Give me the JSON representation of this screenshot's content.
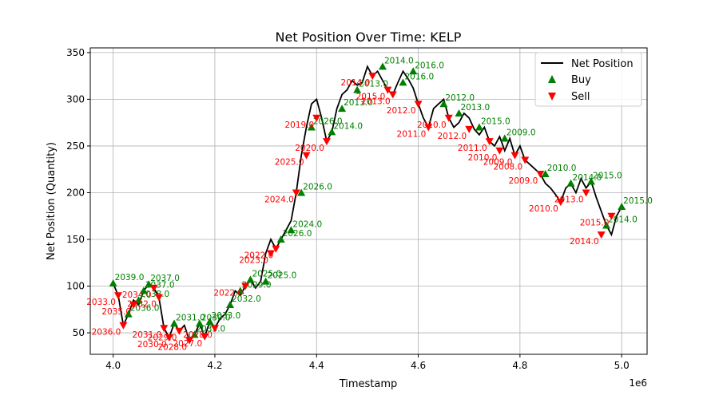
{
  "chart_data": {
    "type": "scatter",
    "title": "Net Position Over Time: KELP",
    "xlabel": "Timestamp",
    "ylabel": "Net Position (Quantity)",
    "x_offset_label": "1e6",
    "xlim": [
      3.955,
      5.05
    ],
    "ylim": [
      27,
      355
    ],
    "x_ticks": [
      4.0,
      4.2,
      4.4,
      4.6,
      4.8,
      5.0
    ],
    "x_tick_labels": [
      "4.0",
      "4.2",
      "4.4",
      "4.6",
      "4.8",
      "5.0"
    ],
    "y_ticks": [
      50,
      100,
      150,
      200,
      250,
      300,
      350
    ],
    "y_tick_labels": [
      "50",
      "100",
      "150",
      "200",
      "250",
      "300",
      "350"
    ],
    "grid": true,
    "legend_position": "top-right",
    "legend": [
      {
        "label": "Net Position",
        "kind": "line",
        "color": "#000000"
      },
      {
        "label": "Buy",
        "kind": "triangle-up",
        "color": "#008000"
      },
      {
        "label": "Sell",
        "kind": "triangle-down",
        "color": "#ff0000"
      }
    ],
    "series": [
      {
        "name": "Net Position",
        "color": "#000000",
        "x": [
          4.0,
          4.01,
          4.02,
          4.03,
          4.04,
          4.05,
          4.06,
          4.07,
          4.08,
          4.09,
          4.1,
          4.11,
          4.12,
          4.13,
          4.14,
          4.15,
          4.16,
          4.17,
          4.18,
          4.19,
          4.2,
          4.21,
          4.22,
          4.23,
          4.24,
          4.25,
          4.26,
          4.27,
          4.28,
          4.29,
          4.3,
          4.31,
          4.32,
          4.33,
          4.34,
          4.35,
          4.36,
          4.37,
          4.38,
          4.39,
          4.4,
          4.41,
          4.42,
          4.43,
          4.44,
          4.45,
          4.46,
          4.47,
          4.48,
          4.49,
          4.5,
          4.51,
          4.52,
          4.53,
          4.54,
          4.55,
          4.56,
          4.57,
          4.58,
          4.59,
          4.6,
          4.61,
          4.62,
          4.63,
          4.64,
          4.65,
          4.66,
          4.67,
          4.68,
          4.69,
          4.7,
          4.71,
          4.72,
          4.73,
          4.74,
          4.75,
          4.76,
          4.77,
          4.78,
          4.79,
          4.8,
          4.81,
          4.82,
          4.83,
          4.84,
          4.85,
          4.86,
          4.87,
          4.88,
          4.89,
          4.9,
          4.91,
          4.92,
          4.93,
          4.94,
          4.95,
          4.96,
          4.97,
          4.98,
          4.99,
          5.0
        ],
        "y": [
          103,
          90,
          58,
          70,
          85,
          80,
          95,
          102,
          98,
          88,
          55,
          45,
          60,
          52,
          58,
          42,
          48,
          60,
          46,
          62,
          55,
          65,
          70,
          80,
          95,
          90,
          100,
          107,
          98,
          105,
          135,
          150,
          140,
          150,
          160,
          170,
          200,
          240,
          270,
          295,
          300,
          280,
          255,
          265,
          290,
          305,
          310,
          320,
          315,
          318,
          335,
          325,
          330,
          320,
          310,
          305,
          318,
          330,
          322,
          312,
          295,
          280,
          270,
          290,
          295,
          300,
          280,
          270,
          275,
          285,
          280,
          268,
          262,
          270,
          255,
          250,
          260,
          245,
          258,
          240,
          250,
          235,
          230,
          225,
          220,
          210,
          205,
          198,
          190,
          205,
          210,
          200,
          215,
          205,
          212,
          195,
          180,
          165,
          155,
          175,
          185
        ]
      },
      {
        "name": "Buy",
        "color": "#008000",
        "x": [
          4.0,
          4.03,
          4.05,
          4.06,
          4.07,
          4.12,
          4.16,
          4.17,
          4.19,
          4.23,
          4.25,
          4.27,
          4.3,
          4.33,
          4.35,
          4.37,
          4.39,
          4.43,
          4.45,
          4.48,
          4.53,
          4.57,
          4.59,
          4.65,
          4.68,
          4.72,
          4.77,
          4.85,
          4.9,
          4.94,
          4.97,
          5.0
        ],
        "y": [
          103,
          70,
          85,
          95,
          102,
          60,
          48,
          60,
          62,
          80,
          95,
          107,
          105,
          150,
          160,
          200,
          270,
          265,
          290,
          310,
          335,
          318,
          330,
          295,
          285,
          270,
          258,
          220,
          210,
          212,
          165,
          185
        ],
        "labels": [
          "2039.0",
          "2036.0",
          "2038.0",
          "2037.0",
          "2037.0",
          "2031.0",
          "2033.0",
          "2030.0",
          "2033.0",
          "2032.0",
          "2029.0",
          "2025.0",
          "2025.0",
          "2026.0",
          "2024.0",
          "2026.0",
          "2026.0",
          "2014.0",
          "2013.0",
          "2013.0",
          "2014.0",
          "2016.0",
          "2016.0",
          "2012.0",
          "2013.0",
          "2015.0",
          "2009.0",
          "2010.0",
          "2014.0",
          "2015.0",
          "2014.0",
          "2015.0"
        ]
      },
      {
        "name": "Sell",
        "color": "#ff0000",
        "x": [
          4.01,
          4.02,
          4.04,
          4.08,
          4.09,
          4.1,
          4.11,
          4.13,
          4.15,
          4.18,
          4.2,
          4.26,
          4.31,
          4.32,
          4.36,
          4.38,
          4.4,
          4.42,
          4.51,
          4.54,
          4.55,
          4.6,
          4.62,
          4.66,
          4.7,
          4.74,
          4.76,
          4.79,
          4.81,
          4.84,
          4.88,
          4.93,
          4.96,
          4.98
        ],
        "y": [
          90,
          58,
          80,
          98,
          88,
          55,
          45,
          52,
          42,
          46,
          55,
          100,
          135,
          140,
          200,
          240,
          280,
          255,
          325,
          310,
          305,
          295,
          270,
          280,
          268,
          255,
          245,
          240,
          235,
          220,
          190,
          200,
          155,
          175
        ],
        "labels": [
          "2033.0",
          "2036.0",
          "2035.0",
          "2034.0",
          "2032.0",
          "2031.0",
          "2030.0",
          "2029.0",
          "2028.0",
          "2027.0",
          "2028.0",
          "2022.0",
          "2023.0",
          "2022.0",
          "2024.0",
          "2025.0",
          "2019.0",
          "2020.0",
          "2014.0",
          "2015.0",
          "2013.0",
          "2012.0",
          "2011.0",
          "2010.0",
          "2012.0",
          "2011.0",
          "2010.0",
          "2009.0",
          "2008.0",
          "2009.0",
          "2010.0",
          "2013.0",
          "2014.0",
          "2015.0"
        ]
      }
    ]
  }
}
